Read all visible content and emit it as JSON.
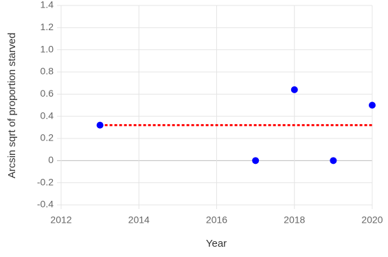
{
  "chart_data": {
    "type": "scatter",
    "x_label": "Year",
    "y_label": "Arcsin sqrt of proportion starved",
    "series": [
      {
        "type": "scatter",
        "color": "#0000ff",
        "x": [
          2013,
          2017,
          2018,
          2019,
          2020
        ],
        "values": [
          0.32,
          0,
          0.64,
          0,
          0.5
        ]
      },
      {
        "type": "line",
        "color": "#ff0000",
        "dashed": true,
        "x": [
          2013,
          2020
        ],
        "values": [
          0.32,
          0.32
        ]
      }
    ],
    "xlim": [
      2012,
      2020
    ],
    "xticks": [
      2012,
      2014,
      2016,
      2018,
      2020
    ],
    "ylim": [
      -0.4,
      1.4
    ],
    "yticks": [
      -0.4,
      -0.2,
      0,
      0.2,
      0.4,
      0.6,
      0.8,
      {
        "value": 1.0,
        "label": "1.0"
      },
      1.2,
      1.4
    ],
    "grid": true
  }
}
